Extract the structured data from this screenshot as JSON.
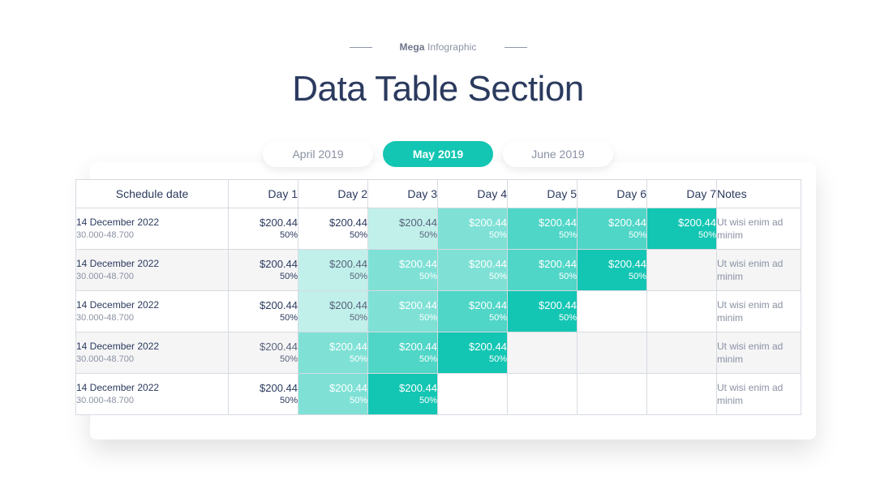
{
  "header": {
    "brand_bold": "Mega",
    "brand_rest": " Infographic",
    "title": "Data Table Section"
  },
  "tabs": [
    {
      "label": "April 2019",
      "active": false
    },
    {
      "label": "May 2019",
      "active": true
    },
    {
      "label": "June 2019",
      "active": false
    }
  ],
  "table": {
    "headers": [
      "Schedule date",
      "Day 1",
      "Day 2",
      "Day 3",
      "Day 4",
      "Day 5",
      "Day 6",
      "Day 7",
      "Notes"
    ],
    "rows": [
      {
        "date": "14 December 2022",
        "range": "30.000-48.700",
        "note": "Ut wisi enim ad minim",
        "cells": [
          {
            "value": "$200.44",
            "pct": "50%",
            "level": 0
          },
          {
            "value": "$200.44",
            "pct": "50%",
            "level": 0
          },
          {
            "value": "$200.44",
            "pct": "50%",
            "level": 1
          },
          {
            "value": "$200.44",
            "pct": "50%",
            "level": 2
          },
          {
            "value": "$200.44",
            "pct": "50%",
            "level": 3
          },
          {
            "value": "$200.44",
            "pct": "50%",
            "level": 3
          },
          {
            "value": "$200.44",
            "pct": "50%",
            "level": 4
          }
        ]
      },
      {
        "date": "14 December 2022",
        "range": "30.000-48.700",
        "note": "Ut wisi enim ad minim",
        "cells": [
          {
            "value": "$200.44",
            "pct": "50%",
            "level": 0
          },
          {
            "value": "$200.44",
            "pct": "50%",
            "level": 1
          },
          {
            "value": "$200.44",
            "pct": "50%",
            "level": 2
          },
          {
            "value": "$200.44",
            "pct": "50%",
            "level": 2
          },
          {
            "value": "$200.44",
            "pct": "50%",
            "level": 3
          },
          {
            "value": "$200.44",
            "pct": "50%",
            "level": 4
          },
          null
        ]
      },
      {
        "date": "14 December 2022",
        "range": "30.000-48.700",
        "note": "Ut wisi enim ad minim",
        "cells": [
          {
            "value": "$200.44",
            "pct": "50%",
            "level": 0
          },
          {
            "value": "$200.44",
            "pct": "50%",
            "level": 1
          },
          {
            "value": "$200.44",
            "pct": "50%",
            "level": 2
          },
          {
            "value": "$200.44",
            "pct": "50%",
            "level": 3
          },
          {
            "value": "$200.44",
            "pct": "50%",
            "level": 4
          },
          null,
          null
        ]
      },
      {
        "date": "14 December 2022",
        "range": "30.000-48.700",
        "note": "Ut wisi enim ad minim",
        "cells": [
          {
            "value": "$200.44",
            "pct": "50%",
            "level": 1
          },
          {
            "value": "$200.44",
            "pct": "50%",
            "level": 2
          },
          {
            "value": "$200.44",
            "pct": "50%",
            "level": 3
          },
          {
            "value": "$200.44",
            "pct": "50%",
            "level": 4
          },
          null,
          null,
          null
        ]
      },
      {
        "date": "14 December 2022",
        "range": "30.000-48.700",
        "note": "Ut wisi enim ad minim",
        "cells": [
          {
            "value": "$200.44",
            "pct": "50%",
            "level": 0
          },
          {
            "value": "$200.44",
            "pct": "50%",
            "level": 2
          },
          {
            "value": "$200.44",
            "pct": "50%",
            "level": 4
          },
          null,
          null,
          null,
          null
        ]
      }
    ]
  },
  "colors": {
    "accent": "#13c6b3",
    "title": "#2b3a5e",
    "level_1": "#c1f0eb",
    "level_2": "#7fe1d6",
    "level_3": "#4fd6c7",
    "level_4": "#13c6b3"
  }
}
